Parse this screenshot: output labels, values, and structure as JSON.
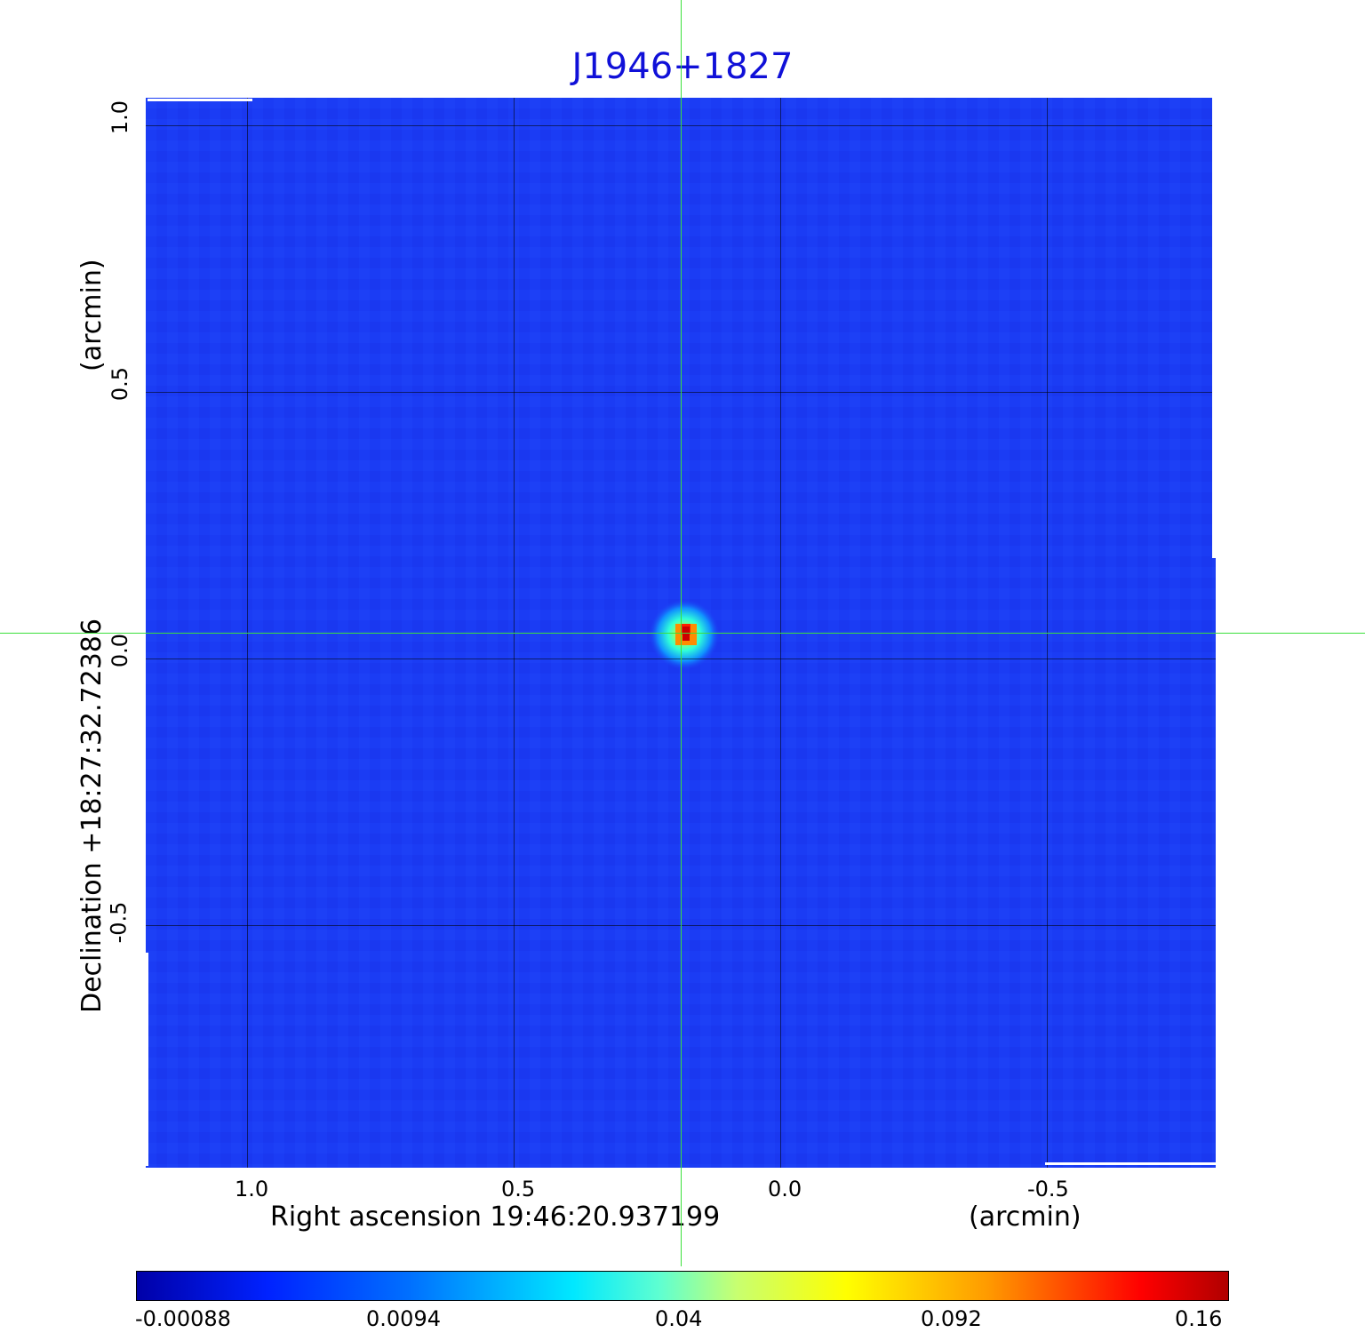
{
  "title": "J1946+1827",
  "image_axes": {
    "ra_label": "Right ascension  19:46:20.937199",
    "ra_unit": "(arcmin)",
    "dec_label": "Declination  +18:27:32.72386",
    "dec_unit": "(arcmin)",
    "x_ticks": [
      "1.0",
      "0.5",
      "0.0",
      "-0.5"
    ],
    "y_ticks": [
      "1.0",
      "0.5",
      "0.0",
      "-0.5"
    ]
  },
  "colorbar": {
    "ticks": [
      "-0.00088",
      "0.0094",
      "0.04",
      "0.092",
      "0.16"
    ],
    "colormap": "jet"
  },
  "source": {
    "description": "bright compact source near image center",
    "peak_color": "#cc0000"
  },
  "colors": {
    "background_map": "#1b3cf4",
    "crosshair": "#3ce03c",
    "title": "#1010d8"
  }
}
